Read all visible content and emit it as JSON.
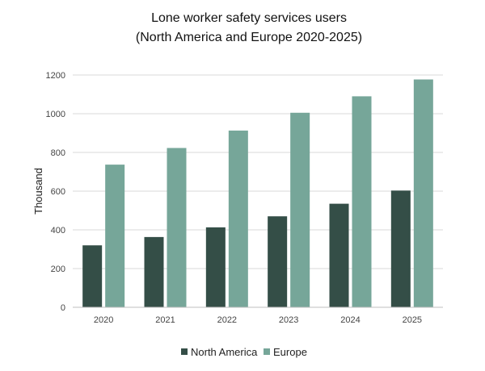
{
  "chart_data": {
    "type": "bar",
    "title_lines": [
      "Lone worker safety services users",
      "(North America and Europe 2020-2025)"
    ],
    "categories": [
      "2020",
      "2021",
      "2022",
      "2023",
      "2024",
      "2025"
    ],
    "series": [
      {
        "name": "North America",
        "color": "#344e47",
        "values": [
          320,
          363,
          413,
          470,
          535,
          603
        ]
      },
      {
        "name": "Europe",
        "color": "#76a699",
        "values": [
          737,
          823,
          913,
          1005,
          1090,
          1177
        ]
      }
    ],
    "ylabel": "Thousand",
    "xlabel": "",
    "ylim": [
      0,
      1200
    ],
    "yticks": [
      "0",
      "200",
      "400",
      "600",
      "800",
      "1000",
      "1200"
    ],
    "grid": true,
    "legend_position": "bottom"
  }
}
